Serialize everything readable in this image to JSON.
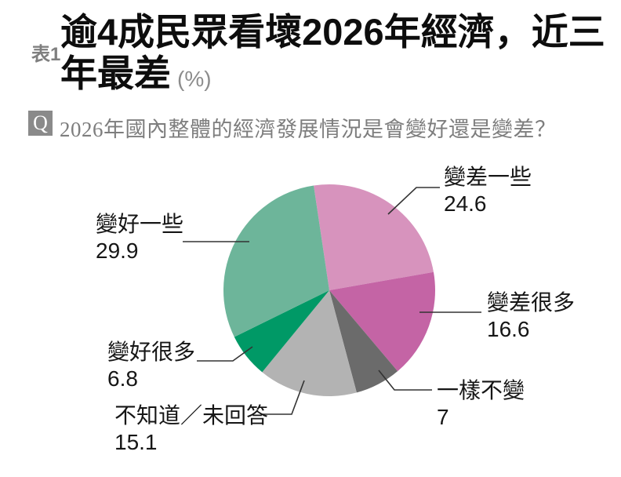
{
  "header": {
    "table_label": "表1",
    "title_line1": "逾4成民眾看壞2026年經濟，近三",
    "title_line2": "年最差",
    "unit": "(%)"
  },
  "question": {
    "badge": "Q",
    "text": "2026年國內整體的經濟發展情況是會變好還是變差？"
  },
  "chart_data": {
    "type": "pie",
    "title": "逾4成民眾看壞2026年經濟，近三年最差",
    "unit": "%",
    "start_angle_deg": -8.5,
    "direction": "clockwise",
    "legend_position": "callout-labels",
    "slices": [
      {
        "label": "變差一些",
        "value": 24.6,
        "color": "#D793BD"
      },
      {
        "label": "變差很多",
        "value": 16.6,
        "color": "#C464A5"
      },
      {
        "label": "一樣不變",
        "value": 7,
        "color": "#6B6B6B"
      },
      {
        "label": "不知道／未回答",
        "value": 15.1,
        "color": "#B3B3B3"
      },
      {
        "label": "變好很多",
        "value": 6.8,
        "color": "#009966"
      },
      {
        "label": "變好一些",
        "value": 29.9,
        "color": "#6DB59A"
      }
    ],
    "leader_line_color": "#333333"
  }
}
